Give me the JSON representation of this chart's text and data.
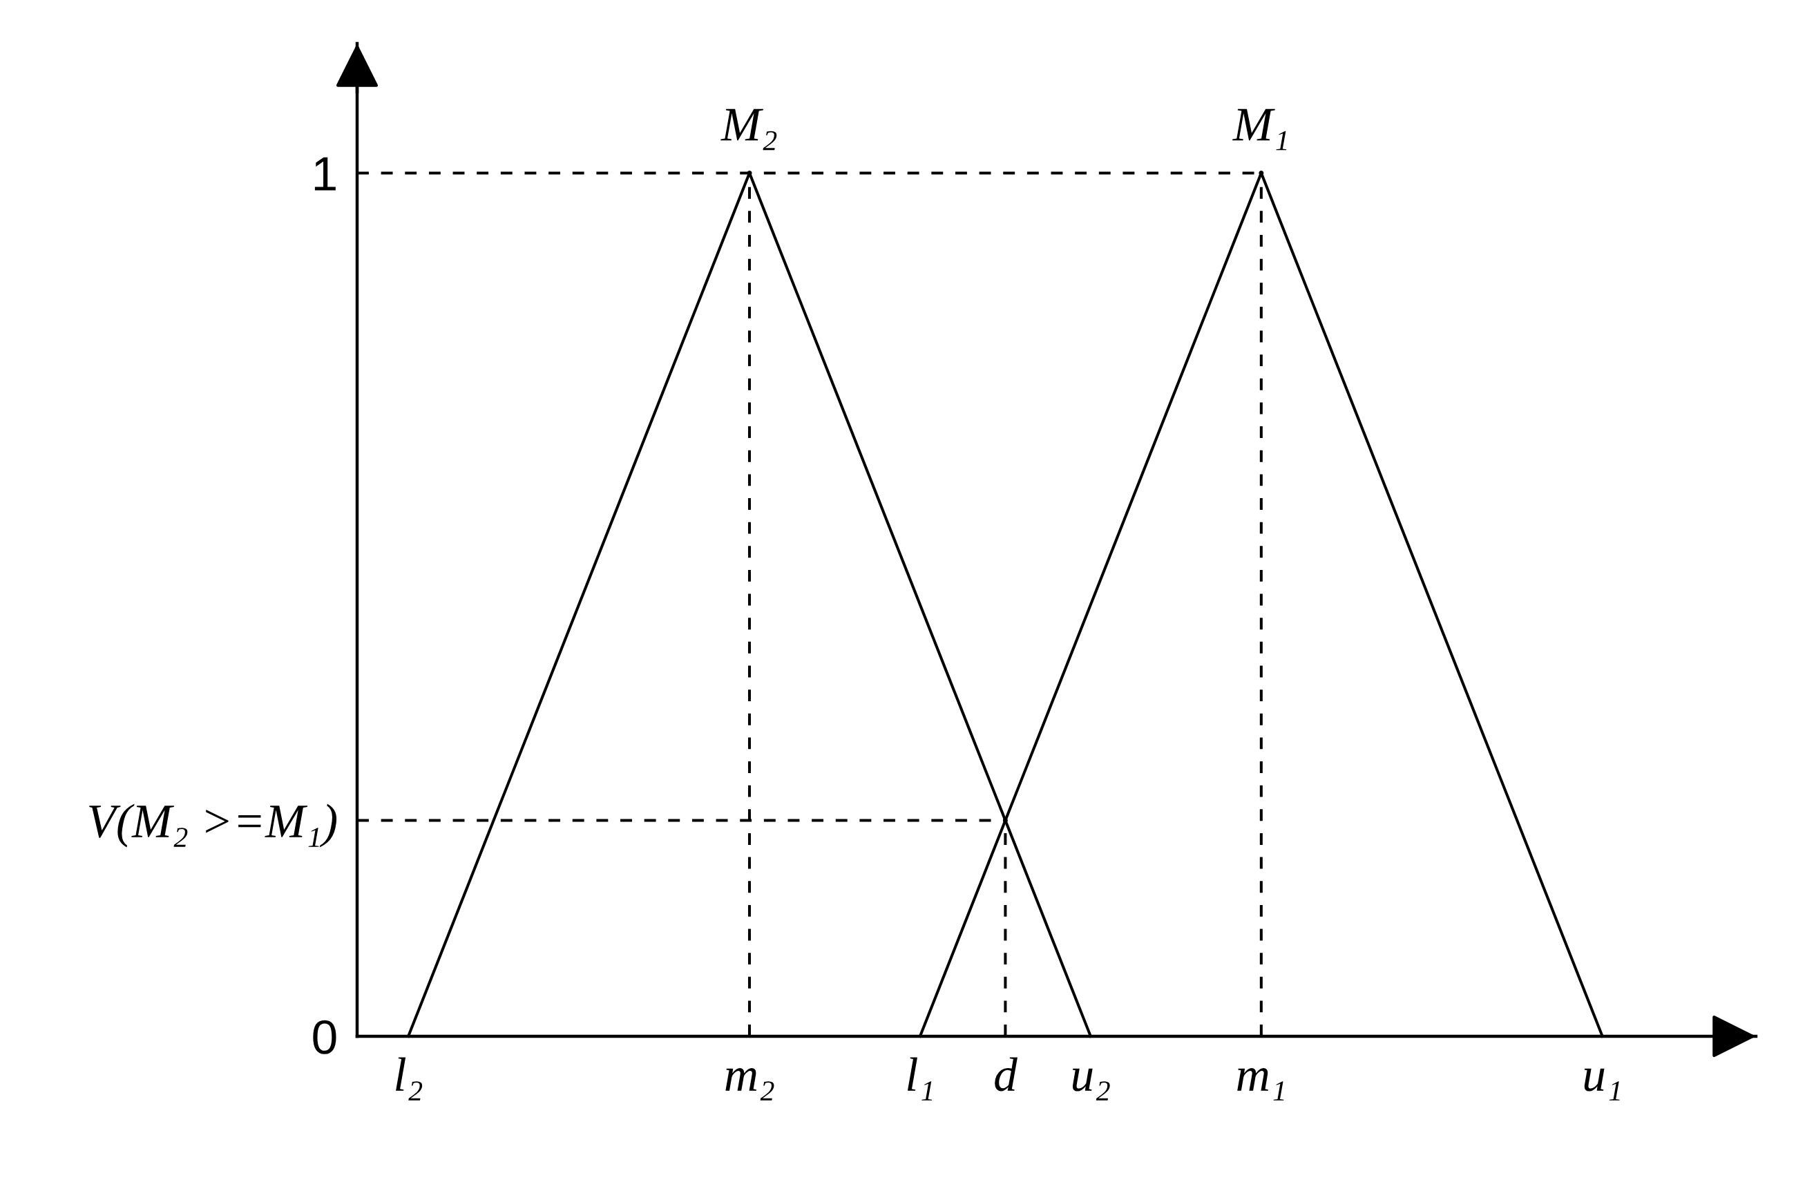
{
  "chart_data": {
    "type": "line",
    "ylim": [
      0,
      1.15
    ],
    "categories": [
      null,
      null,
      null,
      "l₂",
      null,
      null,
      null,
      null,
      null,
      null,
      null,
      null,
      null,
      null,
      null,
      null,
      null,
      null,
      null,
      null,
      null,
      null,
      null,
      "m₂",
      null,
      null,
      null,
      null,
      null,
      null,
      null,
      null,
      null,
      "l₁",
      null,
      null,
      null,
      null,
      "d",
      null,
      null,
      null,
      null,
      "u₂",
      null,
      null,
      null,
      null,
      null,
      null,
      null,
      null,
      null,
      "m₁",
      null,
      null,
      null,
      null,
      null,
      null,
      null,
      null,
      null,
      null,
      null,
      null,
      null,
      null,
      null,
      null,
      null,
      null,
      null,
      "u₁",
      null,
      null,
      null,
      null,
      null,
      null,
      null,
      null,
      null
    ],
    "yticks": [
      0,
      {
        "value": 0.25,
        "label": "V(M₂ >=M₁)"
      },
      1
    ],
    "series": [
      {
        "name": "M₂",
        "color": "#000000",
        "values": [
          null,
          null,
          null,
          0,
          0.05,
          0.1,
          0.15,
          0.2,
          0.25,
          0.3,
          0.35,
          0.4,
          0.45,
          0.5,
          0.55,
          0.6,
          0.65,
          0.7,
          0.75,
          0.8,
          0.85,
          0.9,
          0.95,
          1,
          0.95,
          0.9,
          0.85,
          0.8,
          0.75,
          0.7,
          0.65,
          0.6,
          0.55,
          0.5,
          0.45,
          0.4,
          0.35,
          0.3,
          0.25,
          0.2,
          0.15,
          0.1,
          0.05,
          0,
          null,
          null,
          null,
          null,
          null,
          null,
          null,
          null,
          null,
          null,
          null,
          null,
          null,
          null,
          null,
          null,
          null,
          null,
          null,
          null,
          null,
          null,
          null,
          null,
          null,
          null,
          null,
          null,
          null,
          null,
          null,
          null,
          null,
          null,
          null,
          null,
          null,
          null,
          null
        ]
      },
      {
        "name": "M₁",
        "color": "#000000",
        "values": [
          null,
          null,
          null,
          null,
          null,
          null,
          null,
          null,
          null,
          null,
          null,
          null,
          null,
          null,
          null,
          null,
          null,
          null,
          null,
          null,
          null,
          null,
          null,
          null,
          null,
          null,
          null,
          null,
          null,
          null,
          null,
          null,
          null,
          0,
          0.05,
          0.1,
          0.15,
          0.2,
          0.25,
          0.3,
          0.35,
          0.4,
          0.45,
          0.5,
          0.55,
          0.6,
          0.65,
          0.7,
          0.75,
          0.8,
          0.85,
          0.9,
          0.95,
          1,
          0.95,
          0.9,
          0.85,
          0.8,
          0.75,
          0.7,
          0.65,
          0.6,
          0.55,
          0.5,
          0.45,
          0.4,
          0.35,
          0.3,
          0.25,
          0.2,
          0.15,
          0.1,
          0.05,
          0,
          null,
          null,
          null,
          null,
          null,
          null,
          null,
          null,
          null
        ]
      },
      {
        "color": "#000000",
        "line_style": "dashed",
        "values": [
          1,
          1,
          1,
          1,
          1,
          1,
          1,
          1,
          1,
          1,
          1,
          1,
          1,
          1,
          1,
          1,
          1,
          1,
          1,
          1,
          1,
          1,
          1,
          1,
          1,
          1,
          1,
          1,
          1,
          1,
          1,
          1,
          1,
          1,
          1,
          1,
          1,
          1,
          1,
          1,
          1,
          1,
          1,
          1,
          1,
          1,
          1,
          1,
          1,
          1,
          1,
          1,
          1,
          1,
          null,
          null,
          null,
          null,
          null,
          null,
          null,
          null,
          null,
          null,
          null,
          null,
          null,
          null,
          null,
          null,
          null,
          null,
          null,
          null,
          null,
          null,
          null,
          null,
          null,
          null,
          null,
          null,
          null
        ]
      },
      {
        "color": "#000000",
        "line_style": "dashed",
        "values": [
          0.25,
          0.25,
          0.25,
          0.25,
          0.25,
          0.25,
          0.25,
          0.25,
          0.25,
          0.25,
          0.25,
          0.25,
          0.25,
          0.25,
          0.25,
          0.25,
          0.25,
          0.25,
          0.25,
          0.25,
          0.25,
          0.25,
          0.25,
          0.25,
          0.25,
          0.25,
          0.25,
          0.25,
          0.25,
          0.25,
          0.25,
          0.25,
          0.25,
          0.25,
          0.25,
          0.25,
          0.25,
          0.25,
          0.25,
          null,
          null,
          null,
          null,
          null,
          null,
          null,
          null,
          null,
          null,
          null,
          null,
          null,
          null,
          null,
          null,
          null,
          null,
          null,
          null,
          null,
          null,
          null,
          null,
          null,
          null,
          null,
          null,
          null,
          null,
          null,
          null,
          null,
          null,
          null,
          null,
          null,
          null,
          null,
          null,
          null,
          null,
          null,
          null
        ]
      },
      {
        "type": "lollipop",
        "marker": "circle",
        "color": "#000000",
        "line_style": "dashed",
        "values": [
          null,
          null,
          null,
          null,
          null,
          null,
          null,
          null,
          null,
          null,
          null,
          null,
          null,
          null,
          null,
          null,
          null,
          null,
          null,
          null,
          null,
          null,
          null,
          1,
          null,
          null,
          null,
          null,
          null,
          null,
          null,
          null,
          null,
          null,
          null,
          null,
          null,
          null,
          0.25,
          null,
          null,
          null,
          null,
          null,
          null,
          null,
          null,
          null,
          null,
          null,
          null,
          null,
          null,
          1,
          null,
          null,
          null,
          null,
          null,
          null,
          null,
          null,
          null,
          null,
          null,
          null,
          null,
          null,
          null,
          null,
          null,
          null,
          null,
          null,
          null,
          null,
          null,
          null,
          null,
          null,
          null,
          null,
          null
        ]
      }
    ]
  }
}
